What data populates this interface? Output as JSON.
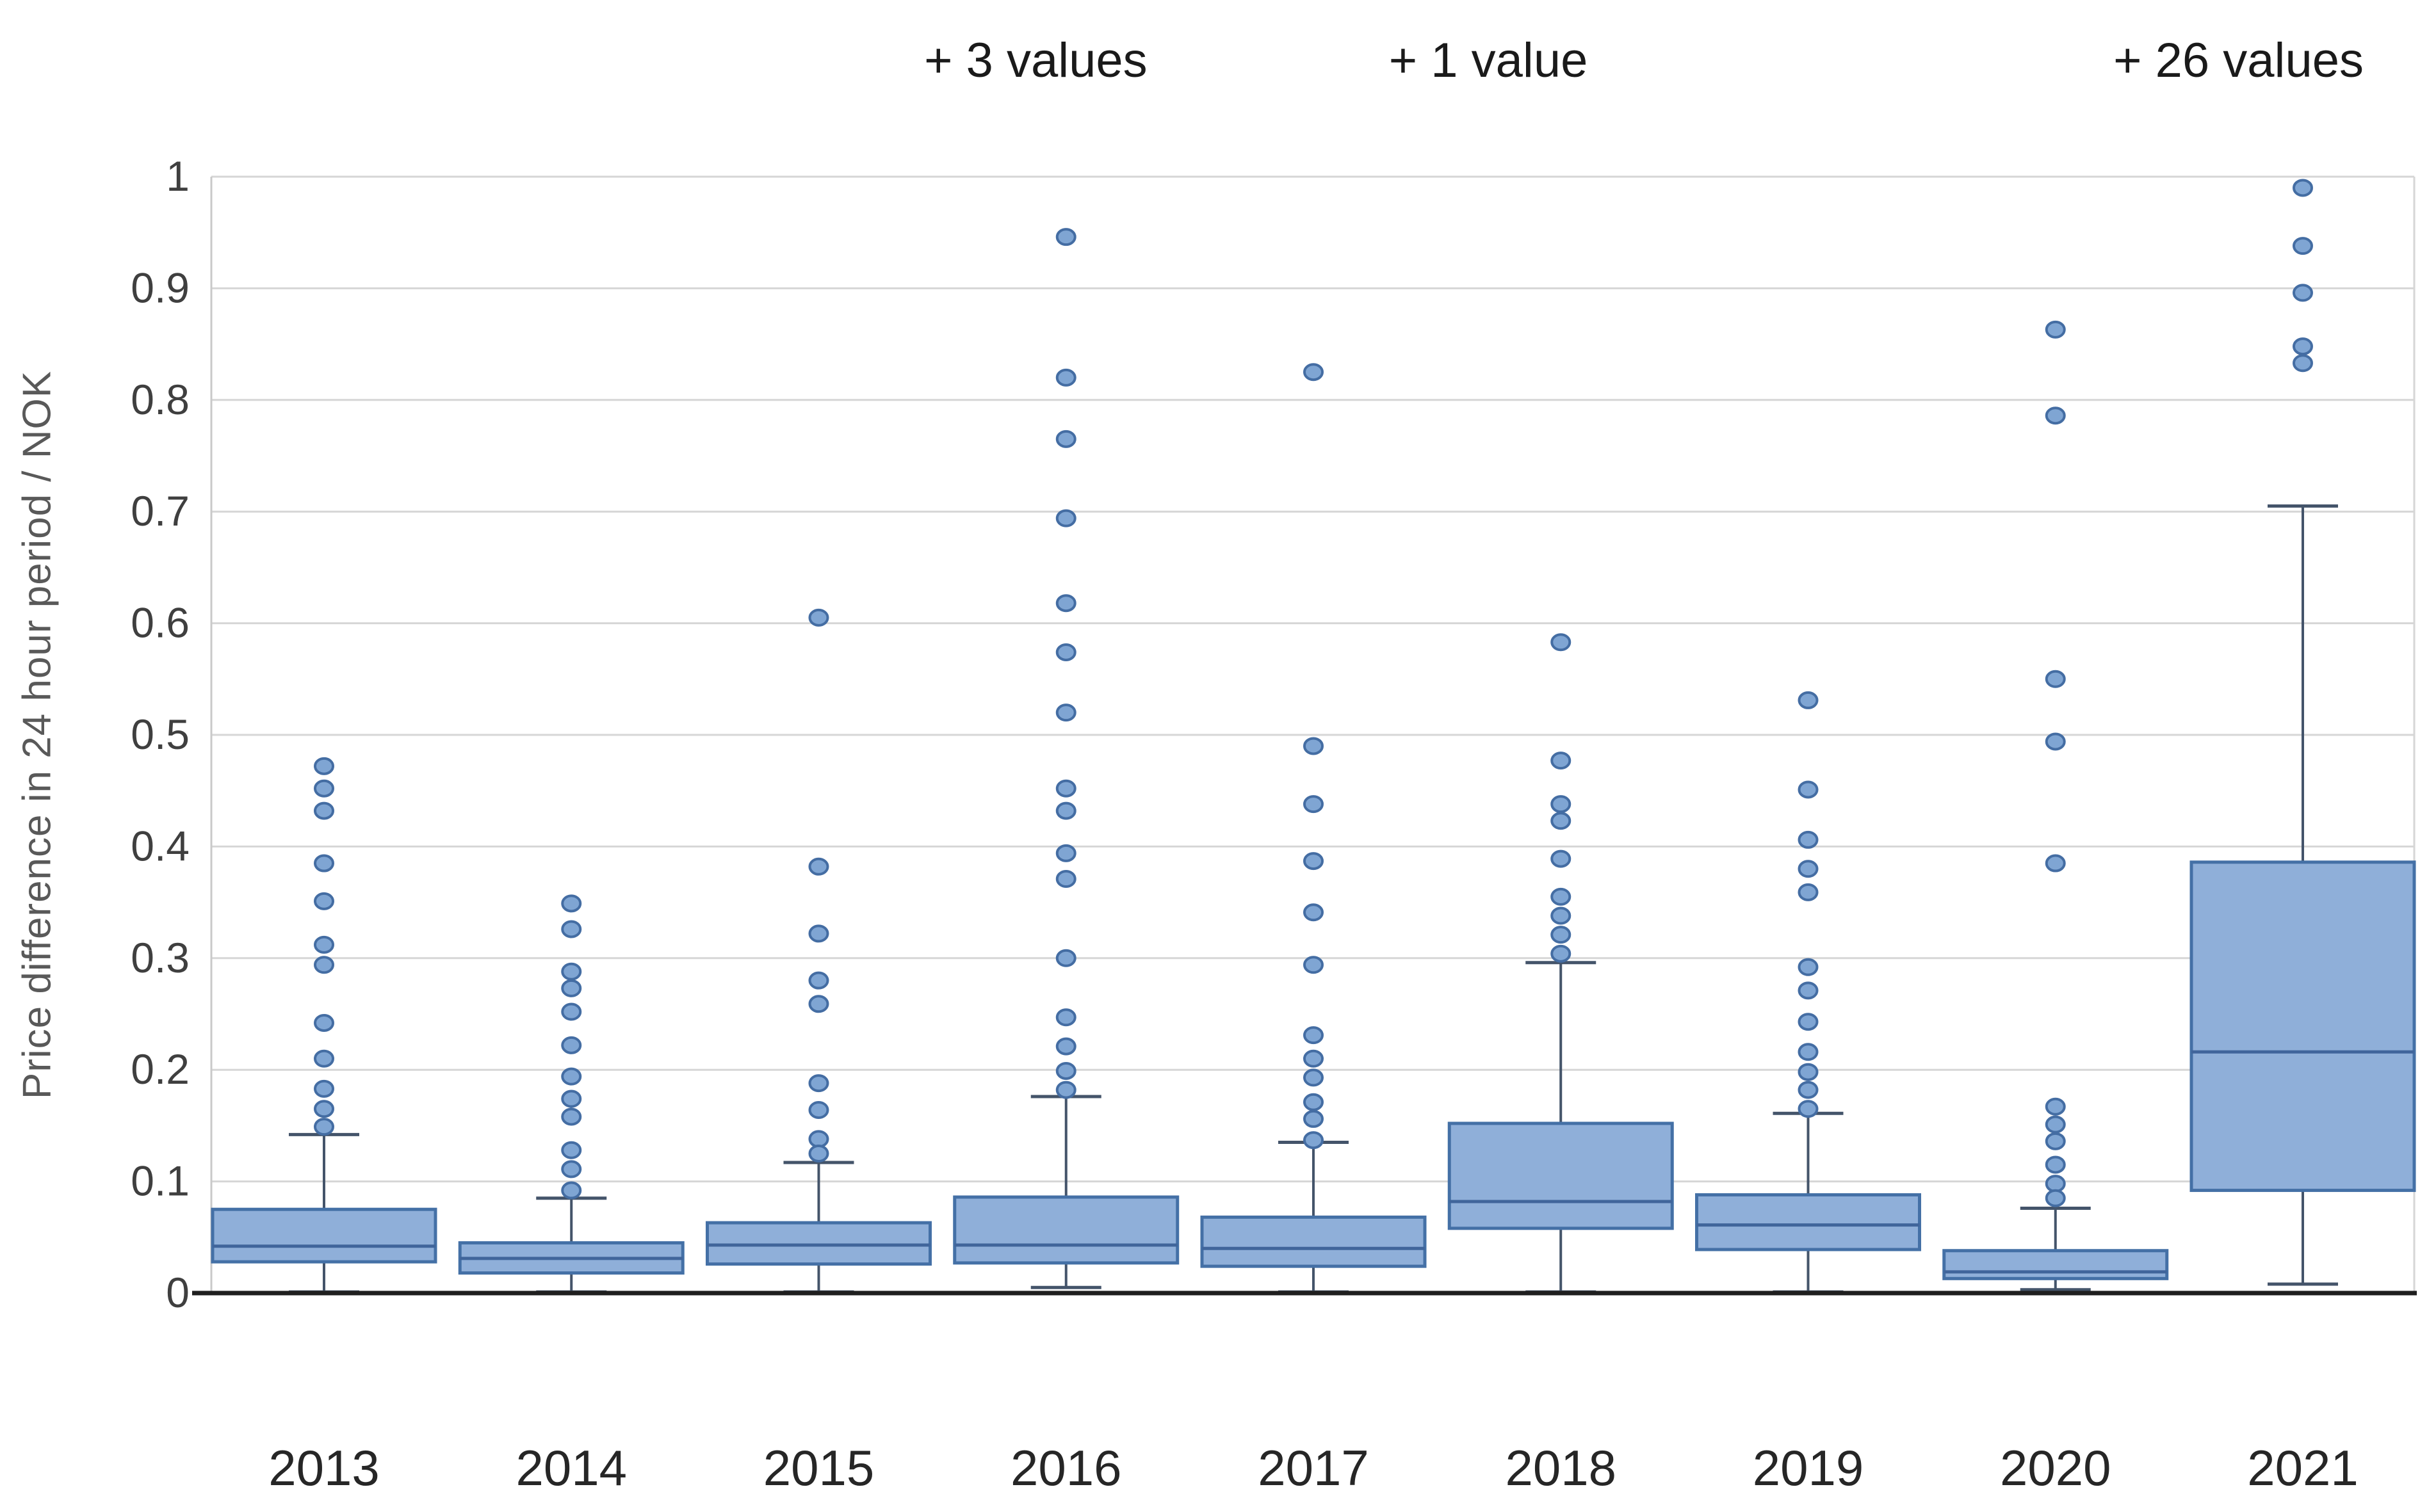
{
  "chart_data": {
    "type": "boxplot",
    "title": "",
    "xlabel": "",
    "ylabel": "Price difference in 24 hour period / NOK",
    "ylim": [
      0,
      1
    ],
    "grid": true,
    "legend": "none",
    "yticks": [
      {
        "value": 0,
        "label": "0"
      },
      {
        "value": 0.1,
        "label": "0.1"
      },
      {
        "value": 0.2,
        "label": "0.2"
      },
      {
        "value": 0.3,
        "label": "0.3"
      },
      {
        "value": 0.4,
        "label": "0.4"
      },
      {
        "value": 0.5,
        "label": "0.5"
      },
      {
        "value": 0.6,
        "label": "0.6"
      },
      {
        "value": 0.7,
        "label": "0.7"
      },
      {
        "value": 0.8,
        "label": "0.8"
      },
      {
        "value": 0.9,
        "label": "0.9"
      },
      {
        "value": 1,
        "label": "1"
      }
    ],
    "categories": [
      "2013",
      "2014",
      "2015",
      "2016",
      "2017",
      "2018",
      "2019",
      "2020",
      "2021"
    ],
    "series": [
      {
        "year": "2013",
        "whisker_low": 0.001,
        "q1": 0.028,
        "median": 0.042,
        "q3": 0.075,
        "whisker_high": 0.142,
        "outliers": [
          0.472,
          0.452,
          0.432,
          0.385,
          0.351,
          0.312,
          0.294,
          0.242,
          0.21,
          0.183,
          0.165,
          0.149
        ]
      },
      {
        "year": "2014",
        "whisker_low": 0.001,
        "q1": 0.018,
        "median": 0.031,
        "q3": 0.045,
        "whisker_high": 0.085,
        "outliers": [
          0.349,
          0.326,
          0.288,
          0.273,
          0.252,
          0.222,
          0.194,
          0.174,
          0.158,
          0.128,
          0.111,
          0.092
        ]
      },
      {
        "year": "2015",
        "whisker_low": 0.001,
        "q1": 0.026,
        "median": 0.043,
        "q3": 0.063,
        "whisker_high": 0.117,
        "outliers": [
          0.605,
          0.382,
          0.322,
          0.28,
          0.259,
          0.188,
          0.164,
          0.138,
          0.125
        ]
      },
      {
        "year": "2016",
        "whisker_low": 0.005,
        "q1": 0.027,
        "median": 0.043,
        "q3": 0.086,
        "whisker_high": 0.176,
        "outliers": [
          0.946,
          0.82,
          0.765,
          0.694,
          0.618,
          0.574,
          0.52,
          0.452,
          0.432,
          0.394,
          0.371,
          0.3,
          0.247,
          0.221,
          0.199,
          0.182
        ]
      },
      {
        "year": "2017",
        "whisker_low": 0.001,
        "q1": 0.024,
        "median": 0.04,
        "q3": 0.068,
        "whisker_high": 0.135,
        "outliers": [
          0.825,
          0.49,
          0.438,
          0.387,
          0.341,
          0.294,
          0.231,
          0.21,
          0.193,
          0.171,
          0.156,
          0.137
        ]
      },
      {
        "year": "2018",
        "whisker_low": 0.001,
        "q1": 0.058,
        "median": 0.082,
        "q3": 0.152,
        "whisker_high": 0.296,
        "outliers": [
          0.583,
          0.477,
          0.438,
          0.423,
          0.389,
          0.355,
          0.338,
          0.321,
          0.304
        ]
      },
      {
        "year": "2019",
        "whisker_low": 0.001,
        "q1": 0.039,
        "median": 0.061,
        "q3": 0.088,
        "whisker_high": 0.161,
        "outliers": [
          0.531,
          0.451,
          0.406,
          0.38,
          0.359,
          0.292,
          0.271,
          0.243,
          0.216,
          0.198,
          0.182,
          0.165
        ]
      },
      {
        "year": "2020",
        "whisker_low": 0.003,
        "q1": 0.013,
        "median": 0.019,
        "q3": 0.038,
        "whisker_high": 0.076,
        "outliers": [
          0.863,
          0.786,
          0.55,
          0.494,
          0.385,
          0.167,
          0.151,
          0.136,
          0.115,
          0.098,
          0.085
        ]
      },
      {
        "year": "2021",
        "whisker_low": 0.008,
        "q1": 0.092,
        "median": 0.216,
        "q3": 0.386,
        "whisker_high": 0.705,
        "outliers": [
          0.99,
          0.938,
          0.896,
          0.848,
          0.833
        ]
      }
    ],
    "annotations": [
      {
        "label": "+ 3 values",
        "year": "2016",
        "x_percent": 42.8
      },
      {
        "label": "+ 1 value",
        "year": "2018",
        "x_percent": 61.5
      },
      {
        "label": "+ 26 values",
        "year": "2021",
        "x_percent": 92.5
      }
    ]
  },
  "colors": {
    "background": "#ffffff",
    "box_fill": "#8FAFD9",
    "box_stroke": "#4470A6",
    "median_stroke": "#40659B",
    "whisker": "#44546A",
    "dot_fill": "#7FA5D3",
    "dot_stroke": "#446DA3",
    "grid": "#D6D6D6",
    "axis": "#1F1F1F",
    "plot_border": "#C9C9C9",
    "tick_text": "#3F3F3F",
    "year_text": "#262626",
    "annotation_text": "#1A1A1A",
    "title_text": "#595959"
  }
}
